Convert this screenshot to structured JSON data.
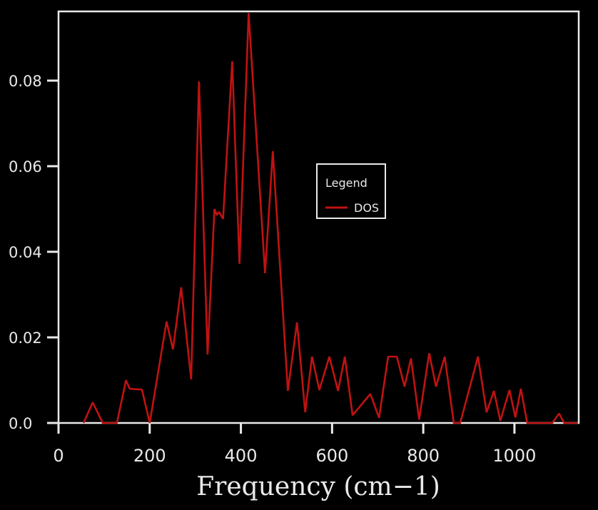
{
  "chart_data": {
    "type": "line",
    "title": "",
    "xlabel": "Frequency (cm−1)",
    "ylabel": "",
    "xlim": [
      0,
      1141
    ],
    "ylim": [
      0,
      0.09617
    ],
    "grid": false,
    "legend_position": "center",
    "x_tick_values": [
      0,
      200,
      400,
      600,
      800,
      1000
    ],
    "x_tick_labels": [
      "0",
      "200",
      "400",
      "600",
      "800",
      "1000"
    ],
    "y_tick_values": [
      0.0,
      0.02,
      0.04,
      0.06,
      0.08
    ],
    "y_tick_labels": [
      "0.0",
      "0.02",
      "0.04",
      "0.06",
      "0.08"
    ],
    "series": [
      {
        "name": "DOS",
        "color": "#c01212",
        "x": [
          55,
          75,
          97,
          128,
          148,
          156,
          183,
          200,
          237,
          251,
          269,
          291,
          308,
          327,
          342,
          347,
          352,
          361,
          381,
          397,
          417,
          453,
          470,
          503,
          523,
          541,
          556,
          572,
          594,
          613,
          628,
          645,
          684,
          703,
          723,
          742,
          759,
          773,
          791,
          813,
          828,
          847,
          867,
          881,
          920,
          939,
          955,
          969,
          989,
          1002,
          1014,
          1028,
          1083,
          1098,
          1109,
          1139
        ],
        "y": [
          0,
          0.0048,
          0,
          0,
          0.01,
          0.008,
          0.0078,
          0,
          0.0237,
          0.0172,
          0.0317,
          0.0102,
          0.0798,
          0.016,
          0.05,
          0.0486,
          0.0493,
          0.0477,
          0.0845,
          0.0372,
          0.0958,
          0.035,
          0.0635,
          0.0075,
          0.0235,
          0.0025,
          0.0155,
          0.0077,
          0.0155,
          0.0075,
          0.0155,
          0.0018,
          0.0068,
          0.0012,
          0.0155,
          0.0155,
          0.0085,
          0.0151,
          0.0008,
          0.0163,
          0.0085,
          0.0155,
          0,
          0,
          0.0155,
          0.0025,
          0.0075,
          0.0005,
          0.0077,
          0.0013,
          0.008,
          0,
          0,
          0.0022,
          0,
          0
        ]
      }
    ]
  },
  "legend": {
    "title": "Legend",
    "series_label": "DOS"
  },
  "colors": {
    "background": "#000000",
    "frame": "#e9e9e9",
    "text": "#e9e9e9",
    "series": "#c01212"
  }
}
